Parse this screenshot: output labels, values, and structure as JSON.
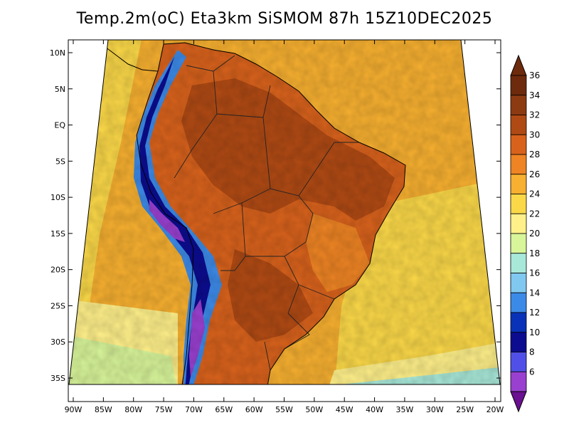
{
  "title": "Temp.2m(oC) Eta3km SiSMOM 87h 15Z10DEC2025",
  "y_axis": {
    "ticks": [
      "10N",
      "5N",
      "EQ",
      "5S",
      "10S",
      "15S",
      "20S",
      "25S",
      "30S",
      "35S"
    ],
    "values": [
      10,
      5,
      0,
      -5,
      -10,
      -15,
      -20,
      -25,
      -30,
      -35
    ]
  },
  "x_axis": {
    "ticks": [
      "90W",
      "85W",
      "80W",
      "75W",
      "70W",
      "65W",
      "60W",
      "55W",
      "50W",
      "45W",
      "40W",
      "35W",
      "30W",
      "25W",
      "20W"
    ],
    "values": [
      -90,
      -85,
      -80,
      -75,
      -70,
      -65,
      -60,
      -55,
      -50,
      -45,
      -40,
      -35,
      -30,
      -25,
      -20
    ]
  },
  "colorbar": {
    "labels": [
      "36",
      "34",
      "32",
      "30",
      "28",
      "26",
      "24",
      "22",
      "20",
      "18",
      "16",
      "14",
      "12",
      "10",
      "8",
      "6"
    ],
    "levels": [
      36,
      34,
      32,
      30,
      28,
      26,
      24,
      22,
      20,
      18,
      16,
      14,
      12,
      10,
      8,
      6
    ],
    "colors": [
      "#6e2a0c",
      "#8c3a12",
      "#b04a14",
      "#d8621c",
      "#ee8424",
      "#f7b030",
      "#fbd848",
      "#fff08a",
      "#d8f59a",
      "#a8e8d8",
      "#80c8f0",
      "#3c8ae8",
      "#0a32b8",
      "#0c0c90",
      "#5050e8",
      "#9a40d0",
      "#6a1090"
    ],
    "min_color": "#6a1090",
    "max_color": "#6e2a0c"
  },
  "palette": {
    "ocean_warm": "#f7b030",
    "ocean_mid": "#fbd848",
    "ocean_cool": "#fff08a",
    "ocean_cold": "#d8f59a",
    "ocean_frigid": "#a8e8d8",
    "land_hot": "#b04a14",
    "land_warm": "#d8621c",
    "land_mild": "#ee8424",
    "andes_blue": "#3c8ae8",
    "andes_dark": "#0c0c90",
    "andes_purple": "#9a40d0"
  }
}
